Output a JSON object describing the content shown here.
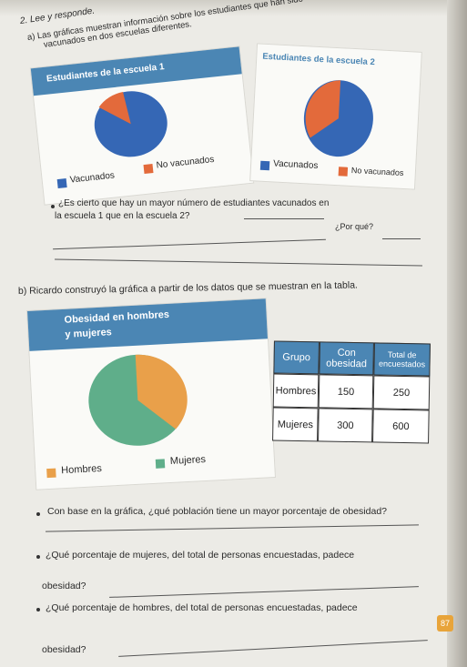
{
  "exercise": {
    "number_title": "2. Lee y responde.",
    "part_a_line1": "a) Las gráficas muestran información sobre los estudiantes que han sido",
    "part_a_line2": "vacunados en dos escuelas diferentes.",
    "chart1": {
      "title": "Estudiantes de la escuela 1",
      "legend_vaccinated": "Vacunados",
      "legend_not_vaccinated": "No vacunados"
    },
    "chart2": {
      "title": "Estudiantes de la escuela 2",
      "legend_vaccinated": "Vacunados",
      "legend_not_vaccinated": "No vacunados"
    },
    "q1_line1": "¿Es cierto que hay un mayor número de estudiantes vacunados en",
    "q1_line2": "la escuela 1 que en la escuela 2?",
    "q1_why": "¿Por qué?",
    "part_b": "b) Ricardo construyó la gráfica a partir de los datos que se muestran en la tabla.",
    "chart3": {
      "title_line1": "Obesidad en hombres",
      "title_line2": "y mujeres",
      "legend_men": "Hombres",
      "legend_women": "Mujeres"
    },
    "table": {
      "headers": [
        "Grupo",
        "Con obesidad",
        "Total de encuestados"
      ],
      "rows": [
        [
          "Hombres",
          "150",
          "250"
        ],
        [
          "Mujeres",
          "300",
          "600"
        ]
      ]
    },
    "q2": "Con base en la gráfica, ¿qué población tiene un mayor porcentaje de obesidad?",
    "q3_line1": "¿Qué porcentaje de mujeres, del total de personas encuestadas, padece",
    "q3_line2": "obesidad?",
    "q4_line1": "¿Qué porcentaje de hombres, del total de personas encuestadas, padece",
    "q4_line2": "obesidad?",
    "page_number": "87"
  },
  "colors": {
    "blue": "#3567b5",
    "orange": "#e36a3b",
    "green": "#5fae8a",
    "header_band": "#4b86b4"
  }
}
